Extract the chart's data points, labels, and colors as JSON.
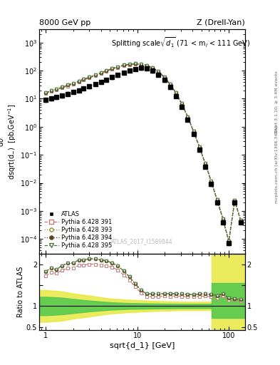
{
  "title_left": "8000 GeV pp",
  "title_right": "Z (Drell-Yan)",
  "annotation": "Splitting scale$\\sqrt{d_1}$ (71 < m$_l$ < 111 GeV)",
  "watermark": "ATLAS_2017_I1589844",
  "ylabel_main": "d$\\sigma$\ndsqrt(d$_{-}$)  [pb,GeV$^{-1}$]",
  "ylabel_ratio": "Ratio to ATLAS",
  "xlabel": "sqrt{d_1} [GeV]",
  "right_label1": "Rivet 3.1.10; ≥ 3.4M events",
  "right_label2": "mcplots.cern.ch [arXiv:1306.3436]",
  "x_data": [
    1.0,
    1.15,
    1.3,
    1.5,
    1.75,
    2.0,
    2.3,
    2.6,
    3.0,
    3.5,
    4.0,
    4.6,
    5.3,
    6.1,
    7.1,
    8.2,
    9.5,
    11.0,
    12.7,
    14.7,
    17.0,
    19.7,
    22.8,
    26.4,
    30.6,
    35.5,
    41.1,
    47.7,
    55.3,
    64.1,
    74.3,
    86.1,
    99.8,
    115.8,
    134.3
  ],
  "atlas_y": [
    9.0,
    10.0,
    11.5,
    13.0,
    15.0,
    17.5,
    20.0,
    23.5,
    27.5,
    33.0,
    40.0,
    48.0,
    58.0,
    70.0,
    85.0,
    100.0,
    115.0,
    125.0,
    120.0,
    98.0,
    72.0,
    46.0,
    26.0,
    12.5,
    5.2,
    1.8,
    0.55,
    0.15,
    0.038,
    0.009,
    0.002,
    0.0004,
    7e-05,
    0.002,
    0.0004
  ],
  "atlas_yerr": [
    1.2,
    1.4,
    1.6,
    1.8,
    2.0,
    2.4,
    2.7,
    3.1,
    3.7,
    4.3,
    5.2,
    6.2,
    7.5,
    9.0,
    11.0,
    13.0,
    15.0,
    16.0,
    15.5,
    12.5,
    9.5,
    6.0,
    3.4,
    1.6,
    0.68,
    0.23,
    0.07,
    0.02,
    0.005,
    0.0012,
    0.00027,
    5e-05,
    1e-05,
    0.0003,
    6e-05
  ],
  "py391_y": [
    15.5,
    18.0,
    20.5,
    24.0,
    28.5,
    33.5,
    39.5,
    46.5,
    55.0,
    66.0,
    79.0,
    94.0,
    112.0,
    130.0,
    148.0,
    162.0,
    168.0,
    164.0,
    148.0,
    120.0,
    88.0,
    57.0,
    32.0,
    15.5,
    6.4,
    2.2,
    0.67,
    0.185,
    0.047,
    0.011,
    0.0024,
    0.0005,
    8e-05,
    0.0023,
    0.00045
  ],
  "py393_y": [
    16.5,
    19.0,
    21.5,
    25.5,
    30.5,
    35.5,
    42.0,
    49.5,
    58.5,
    70.0,
    84.0,
    100.0,
    118.0,
    137.0,
    156.0,
    170.0,
    176.0,
    172.0,
    155.0,
    126.0,
    93.0,
    60.0,
    33.5,
    16.3,
    6.7,
    2.3,
    0.7,
    0.193,
    0.049,
    0.0115,
    0.0025,
    0.00052,
    8.3e-05,
    0.00235,
    0.00046
  ],
  "py394_y": [
    16.5,
    19.0,
    21.5,
    25.5,
    30.5,
    35.5,
    42.0,
    49.5,
    58.5,
    70.0,
    84.0,
    100.0,
    118.0,
    137.0,
    156.0,
    170.0,
    176.0,
    172.0,
    155.0,
    126.0,
    93.0,
    60.0,
    33.5,
    16.3,
    6.7,
    2.3,
    0.7,
    0.193,
    0.049,
    0.0115,
    0.0025,
    0.00052,
    8.3e-05,
    0.00235,
    0.00046
  ],
  "py395_y": [
    16.5,
    19.0,
    21.5,
    25.5,
    30.5,
    35.5,
    42.0,
    49.5,
    58.5,
    70.0,
    84.0,
    100.0,
    118.0,
    137.0,
    156.0,
    170.0,
    176.0,
    172.0,
    155.0,
    126.0,
    93.0,
    60.0,
    33.5,
    16.3,
    6.7,
    2.3,
    0.7,
    0.193,
    0.049,
    0.0115,
    0.0025,
    0.00052,
    8.3e-05,
    0.00235,
    0.00046
  ],
  "ratio_391": [
    1.72,
    1.8,
    1.78,
    1.85,
    1.9,
    1.91,
    1.97,
    1.98,
    2.0,
    2.0,
    1.975,
    1.96,
    1.93,
    1.86,
    1.74,
    1.62,
    1.46,
    1.31,
    1.23,
    1.22,
    1.22,
    1.24,
    1.23,
    1.24,
    1.23,
    1.22,
    1.22,
    1.23,
    1.24,
    1.22,
    1.2,
    1.25,
    1.14,
    1.15,
    1.125
  ],
  "ratio_393": [
    1.83,
    1.9,
    1.87,
    1.96,
    2.03,
    2.03,
    2.1,
    2.1,
    2.13,
    2.12,
    2.1,
    2.08,
    2.03,
    1.96,
    1.84,
    1.7,
    1.53,
    1.38,
    1.29,
    1.29,
    1.29,
    1.3,
    1.29,
    1.3,
    1.29,
    1.28,
    1.27,
    1.287,
    1.29,
    1.278,
    1.25,
    1.3,
    1.19,
    1.175,
    1.15
  ],
  "ratio_394": [
    1.83,
    1.9,
    1.87,
    1.96,
    2.03,
    2.03,
    2.1,
    2.1,
    2.13,
    2.12,
    2.1,
    2.08,
    2.03,
    1.96,
    1.84,
    1.7,
    1.53,
    1.38,
    1.29,
    1.29,
    1.29,
    1.3,
    1.29,
    1.3,
    1.29,
    1.28,
    1.27,
    1.287,
    1.29,
    1.278,
    1.25,
    1.3,
    1.19,
    1.175,
    1.15
  ],
  "ratio_395": [
    1.83,
    1.9,
    1.87,
    1.96,
    2.03,
    2.03,
    2.1,
    2.1,
    2.13,
    2.12,
    2.1,
    2.08,
    2.03,
    1.96,
    1.84,
    1.7,
    1.53,
    1.38,
    1.29,
    1.29,
    1.29,
    1.3,
    1.29,
    1.3,
    1.29,
    1.28,
    1.27,
    1.287,
    1.29,
    1.278,
    1.25,
    1.3,
    1.19,
    1.175,
    1.15
  ],
  "color_atlas": "#000000",
  "color_391": "#c87878",
  "color_393": "#909030",
  "color_394": "#604020",
  "color_395": "#507840",
  "color_yellow": "#e8e840",
  "color_green": "#50c850",
  "ylim_main": [
    3e-05,
    3000.0
  ],
  "ylim_ratio": [
    0.42,
    2.25
  ],
  "xlim": [
    0.85,
    150
  ]
}
